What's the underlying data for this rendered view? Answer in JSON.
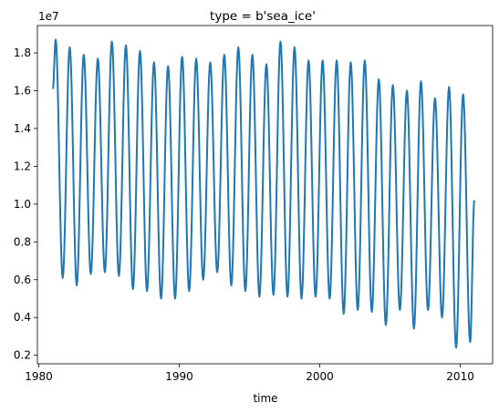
{
  "chart_data": {
    "type": "line",
    "title": "type = b'sea_ice'",
    "xlabel": "time",
    "ylabel": "",
    "y_offset_label": "1e7",
    "xlim": [
      1979.9,
      2012.3
    ],
    "ylim": [
      1.55,
      19.45
    ],
    "x_ticks": [
      1980,
      1990,
      2000,
      2010
    ],
    "x_tick_labels": [
      "1980",
      "1990",
      "2000",
      "2010"
    ],
    "y_ticks": [
      2,
      4,
      6,
      8,
      10,
      12,
      14,
      16,
      18
    ],
    "y_tick_labels": [
      "0.2",
      "0.4",
      "0.6",
      "0.8",
      "1.0",
      "1.2",
      "1.4",
      "1.6",
      "1.8"
    ],
    "grid": false,
    "legend": "none",
    "line_color": "#1f77b4",
    "series_unit_scale": 1000000,
    "start": 1981.0,
    "first_value": 16.1,
    "last_value": 10.2,
    "end": 2011.0,
    "annual_extremes": [
      {
        "year": 1981,
        "max": 18.7,
        "min": 6.1
      },
      {
        "year": 1982,
        "max": 18.3,
        "min": 5.7
      },
      {
        "year": 1983,
        "max": 17.9,
        "min": 6.3
      },
      {
        "year": 1984,
        "max": 17.7,
        "min": 6.4
      },
      {
        "year": 1985,
        "max": 18.6,
        "min": 6.2
      },
      {
        "year": 1986,
        "max": 18.4,
        "min": 5.5
      },
      {
        "year": 1987,
        "max": 18.1,
        "min": 5.4
      },
      {
        "year": 1988,
        "max": 17.5,
        "min": 5.0
      },
      {
        "year": 1989,
        "max": 17.3,
        "min": 5.0
      },
      {
        "year": 1990,
        "max": 17.8,
        "min": 5.4
      },
      {
        "year": 1991,
        "max": 17.7,
        "min": 6.0
      },
      {
        "year": 1992,
        "max": 17.5,
        "min": 6.4
      },
      {
        "year": 1993,
        "max": 17.9,
        "min": 5.7
      },
      {
        "year": 1994,
        "max": 18.3,
        "min": 5.4
      },
      {
        "year": 1995,
        "max": 17.9,
        "min": 5.1
      },
      {
        "year": 1996,
        "max": 17.4,
        "min": 5.2
      },
      {
        "year": 1997,
        "max": 18.6,
        "min": 5.1
      },
      {
        "year": 1998,
        "max": 18.3,
        "min": 5.0
      },
      {
        "year": 1999,
        "max": 17.6,
        "min": 5.1
      },
      {
        "year": 2000,
        "max": 17.6,
        "min": 5.0
      },
      {
        "year": 2001,
        "max": 17.6,
        "min": 4.2
      },
      {
        "year": 2002,
        "max": 17.5,
        "min": 4.4
      },
      {
        "year": 2003,
        "max": 17.6,
        "min": 4.3
      },
      {
        "year": 2004,
        "max": 16.6,
        "min": 3.6
      },
      {
        "year": 2005,
        "max": 16.3,
        "min": 4.4
      },
      {
        "year": 2006,
        "max": 16.0,
        "min": 3.4
      },
      {
        "year": 2007,
        "max": 16.5,
        "min": 4.4
      },
      {
        "year": 2008,
        "max": 15.6,
        "min": 4.0
      },
      {
        "year": 2009,
        "max": 16.2,
        "min": 2.4
      },
      {
        "year": 2010,
        "max": 15.8,
        "min": 2.7
      }
    ]
  }
}
